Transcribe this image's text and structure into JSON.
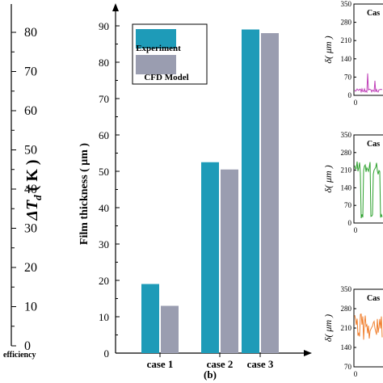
{
  "left_panel": {
    "ylabel_prefix": "ΔT",
    "ylabel_sub": "d",
    "ylabel_suffix": " ( K )",
    "ticks": [
      "0",
      "10",
      "20",
      "30",
      "40",
      "50",
      "60",
      "70",
      "80"
    ],
    "bottom_text": "efficiency"
  },
  "chart_data": {
    "type": "bar",
    "panel_label": "(b)",
    "categories": [
      "case 1",
      "case 2",
      "case 3"
    ],
    "series": [
      {
        "name": "Experiment",
        "values": [
          19,
          52.5,
          89
        ],
        "color": "#1e9bb8"
      },
      {
        "name": "CFD Model",
        "values": [
          13,
          50.5,
          88
        ],
        "color": "#9a9db0"
      }
    ],
    "title": "",
    "xlabel": "",
    "ylabel": "Film thickness ( μm )",
    "ylim": [
      0,
      90
    ],
    "yticks": [
      0,
      10,
      20,
      30,
      40,
      50,
      60,
      70,
      80,
      90
    ],
    "legend_position": "top-left"
  },
  "right_panels": {
    "ylabel": "δ( μm )",
    "x_tick": "0",
    "colors": {
      "top": "#c040b8",
      "middle": "#2ca02c",
      "bottom": "#f08030"
    },
    "top": {
      "title": "Cas",
      "ticks": [
        "0",
        "70",
        "140",
        "210",
        "280",
        "350"
      ]
    },
    "middle": {
      "title": "Cas",
      "ticks": [
        "0",
        "70",
        "140",
        "210",
        "280",
        "350"
      ]
    },
    "bottom": {
      "title": "Cas",
      "ticks": [
        "70",
        "140",
        "210",
        "280",
        "350"
      ]
    }
  }
}
